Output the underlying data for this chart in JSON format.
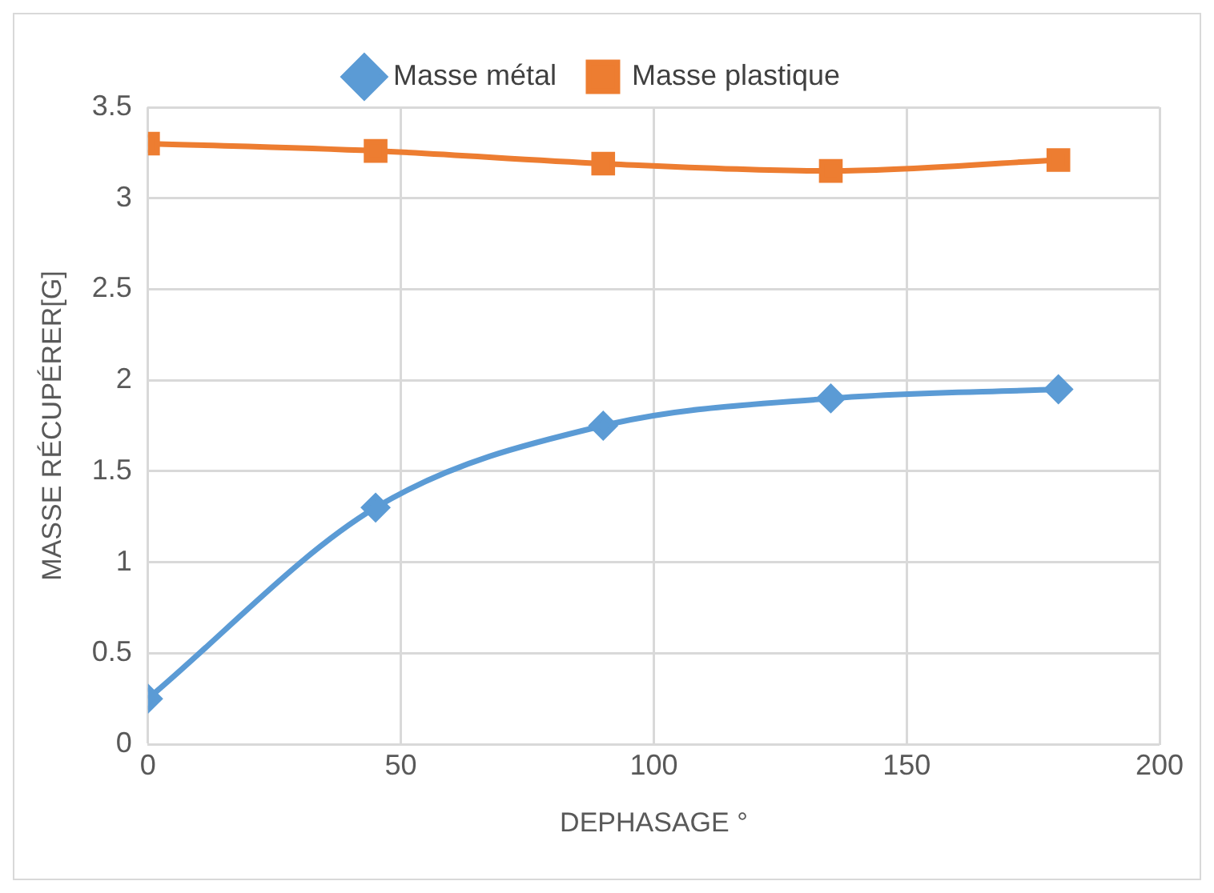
{
  "chart_data": {
    "type": "line",
    "xlabel": "DEPHASAGE °",
    "ylabel": "MASSE RÉCUPÉRER[G]",
    "x": [
      0,
      45,
      90,
      135,
      180
    ],
    "series": [
      {
        "name": "Masse métal",
        "color": "#5b9bd5",
        "marker": "diamond",
        "values": [
          0.25,
          1.3,
          1.75,
          1.9,
          1.95
        ]
      },
      {
        "name": "Masse plastique",
        "color": "#ed7d31",
        "marker": "square",
        "values": [
          3.3,
          3.26,
          3.19,
          3.15,
          3.21
        ]
      }
    ],
    "xlim": [
      0,
      200
    ],
    "xticks": [
      0,
      50,
      100,
      150,
      200
    ],
    "ylim": [
      0,
      3.5
    ],
    "yticks": [
      0,
      0.5,
      1,
      1.5,
      2,
      2.5,
      3,
      3.5
    ],
    "grid": true,
    "legend": "top"
  }
}
